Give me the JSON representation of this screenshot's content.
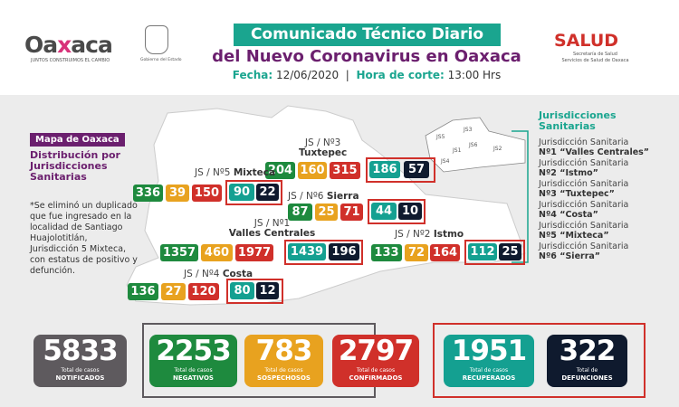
{
  "header": {
    "logo_text": "Oaxaca",
    "logo_tagline": "JUNTOS CONSTRUIMOS EL CAMBIO",
    "gobierno": "Gobierno del Estado",
    "title_line1": "Comunicado Técnico Diario",
    "title_line2": "del Nuevo Coronavirus en Oaxaca",
    "fecha_label": "Fecha:",
    "fecha": "12/06/2020",
    "hora_label": "Hora de corte:",
    "hora": "13:00 Hrs",
    "salud": "SALUD",
    "salud_sub1": "Secretaría de Salud",
    "salud_sub2": "Servicios de Salud de Oaxaca"
  },
  "left": {
    "mapa_label": "Mapa de Oaxaca",
    "dist_title": "Distribución por Jurisdicciones Sanitarias",
    "note": "*Se eliminó un duplicado que fue ingresado en la localidad de Santiago Huajolotitlán, Jurisdicción 5 Mixteca, con estatus de positivo y defunción."
  },
  "jurisdictions": {
    "tuxtepec": {
      "js": "JS / Nº3",
      "name": "Tuxtepec",
      "neg": "204",
      "sos": "160",
      "conf": "315",
      "rec": "186",
      "def": "57"
    },
    "mixteca": {
      "js": "JS / Nº5",
      "name": "Mixteca",
      "neg": "336",
      "sos": "39",
      "conf": "150",
      "rec": "90",
      "def": "22"
    },
    "sierra": {
      "js": "JS / Nº6",
      "name": "Sierra",
      "neg": "87",
      "sos": "25",
      "conf": "71",
      "rec": "44",
      "def": "10"
    },
    "valles": {
      "js": "JS / Nº1",
      "name": "Valles Centrales",
      "neg": "1357",
      "sos": "460",
      "conf": "1977",
      "rec": "1439",
      "def": "196"
    },
    "istmo": {
      "js": "JS / Nº2",
      "name": "Istmo",
      "neg": "133",
      "sos": "72",
      "conf": "164",
      "rec": "112",
      "def": "25"
    },
    "costa": {
      "js": "JS / Nº4",
      "name": "Costa",
      "neg": "136",
      "sos": "27",
      "conf": "120",
      "rec": "80",
      "def": "12"
    }
  },
  "inset_labels": [
    "JS1",
    "JS2",
    "JS3",
    "JS4",
    "JS5",
    "JS6"
  ],
  "legend": {
    "title": "Jurisdicciones Sanitarias",
    "prefix": "Jurisdicción Sanitaria",
    "items": [
      "Nº1 “Valles Centrales”",
      "Nº2 “Istmo”",
      "Nº3 “Tuxtepec”",
      "Nº4 “Costa”",
      "Nº5 “Mixteca”",
      "Nº6 “Sierra”"
    ]
  },
  "totals": [
    {
      "value": "5833",
      "l1": "Total de casos",
      "l2": "NOTIFICADOS",
      "color": "#5e5a5e"
    },
    {
      "value": "2253",
      "l1": "Total de casos",
      "l2": "NEGATIVOS",
      "color": "#1e8a3e"
    },
    {
      "value": "783",
      "l1": "Total de casos",
      "l2": "SOSPECHOSOS",
      "color": "#e8a21f"
    },
    {
      "value": "2797",
      "l1": "Total de casos",
      "l2": "CONFIRMADOS",
      "color": "#d0302a"
    },
    {
      "value": "1951",
      "l1": "Total de casos",
      "l2": "RECUPERADOS",
      "color": "#14a091"
    },
    {
      "value": "322",
      "l1": "Total de",
      "l2": "DEFUNCIONES",
      "color": "#0f1a2e"
    }
  ]
}
